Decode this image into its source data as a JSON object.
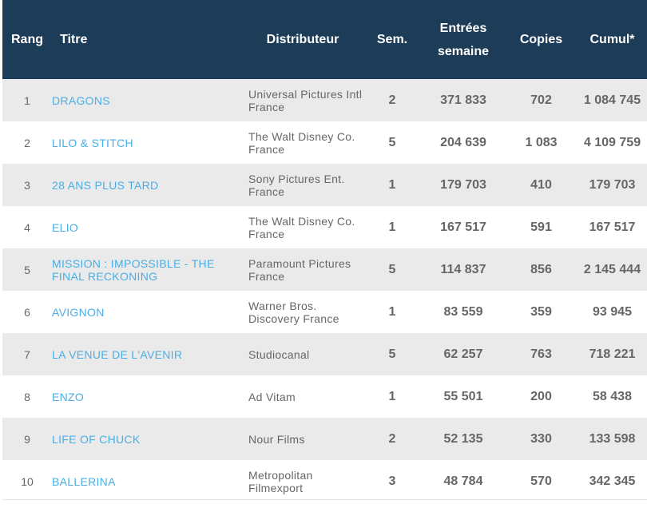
{
  "columns": {
    "rang": "Rang",
    "titre": "Titre",
    "distributeur": "Distributeur",
    "sem": "Sem.",
    "entrees_line1": "Entrées",
    "entrees_line2": "semaine",
    "copies": "Copies",
    "cumul": "Cumul*"
  },
  "rows": [
    {
      "rang": "1",
      "titre": "DRAGONS",
      "titre2": "",
      "dist1": "Universal Pictures Intl",
      "dist2": "France",
      "sem": "2",
      "entrees": "371 833",
      "copies": "702",
      "cumul": "1 084 745"
    },
    {
      "rang": "2",
      "titre": "LILO & STITCH",
      "titre2": "",
      "dist1": "The Walt Disney Co.",
      "dist2": "France",
      "sem": "5",
      "entrees": "204 639",
      "copies": "1 083",
      "cumul": "4 109 759"
    },
    {
      "rang": "3",
      "titre": "28 ANS PLUS TARD",
      "titre2": "",
      "dist1": "Sony Pictures Ent.",
      "dist2": "France",
      "sem": "1",
      "entrees": "179 703",
      "copies": "410",
      "cumul": "179 703"
    },
    {
      "rang": "4",
      "titre": "ELIO",
      "titre2": "",
      "dist1": "The Walt Disney Co.",
      "dist2": "France",
      "sem": "1",
      "entrees": "167 517",
      "copies": "591",
      "cumul": "167 517"
    },
    {
      "rang": "5",
      "titre": "MISSION : IMPOSSIBLE - THE",
      "titre2": "FINAL RECKONING",
      "dist1": "Paramount Pictures",
      "dist2": "France",
      "sem": "5",
      "entrees": "114 837",
      "copies": "856",
      "cumul": "2 145 444"
    },
    {
      "rang": "6",
      "titre": "AVIGNON",
      "titre2": "",
      "dist1": "Warner Bros.",
      "dist2": "Discovery France",
      "sem": "1",
      "entrees": "83 559",
      "copies": "359",
      "cumul": "93 945"
    },
    {
      "rang": "7",
      "titre": "LA VENUE DE L'AVENIR",
      "titre2": "",
      "dist1": "Studiocanal",
      "dist2": "",
      "sem": "5",
      "entrees": "62 257",
      "copies": "763",
      "cumul": "718 221"
    },
    {
      "rang": "8",
      "titre": "ENZO",
      "titre2": "",
      "dist1": "Ad Vitam",
      "dist2": "",
      "sem": "1",
      "entrees": "55 501",
      "copies": "200",
      "cumul": "58 438"
    },
    {
      "rang": "9",
      "titre": "LIFE OF CHUCK",
      "titre2": "",
      "dist1": "Nour Films",
      "dist2": "",
      "sem": "2",
      "entrees": "52 135",
      "copies": "330",
      "cumul": "133 598"
    },
    {
      "rang": "10",
      "titre": "BALLERINA",
      "titre2": "",
      "dist1": "Metropolitan",
      "dist2": "Filmexport",
      "sem": "3",
      "entrees": "48 784",
      "copies": "570",
      "cumul": "342 345"
    }
  ]
}
